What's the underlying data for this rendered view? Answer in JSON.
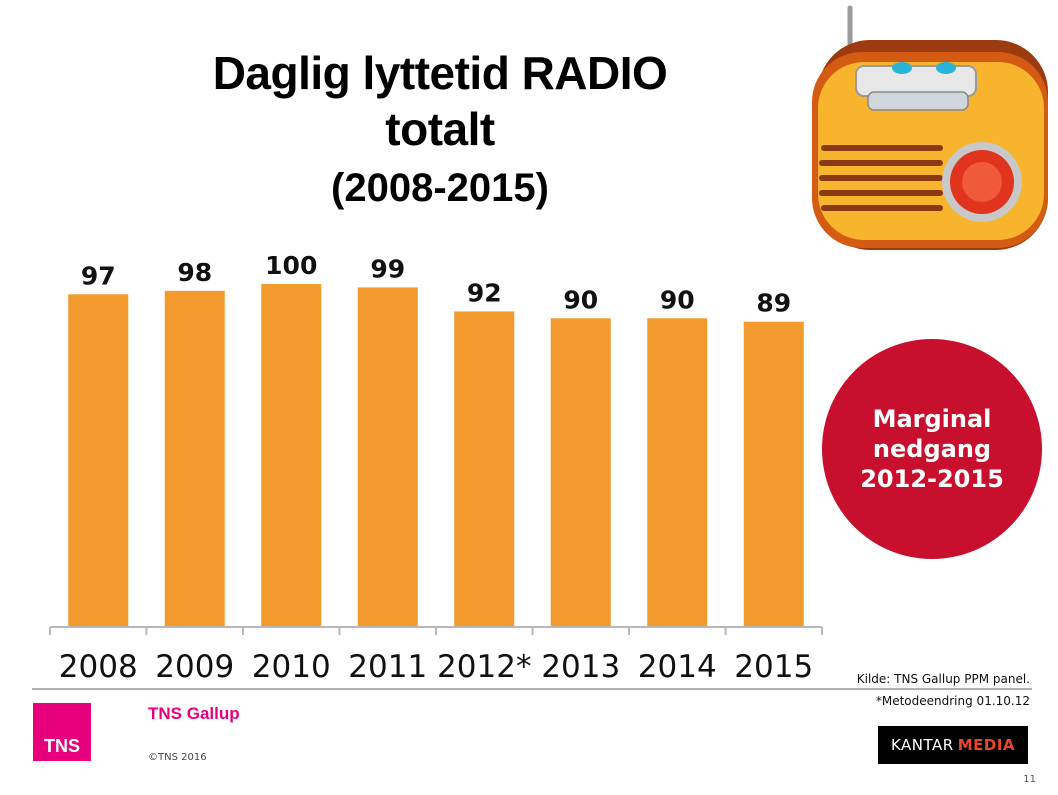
{
  "title": {
    "line1": "Daglig lyttetid RADIO",
    "line2": "totalt",
    "subtitle": "(2008-2015)"
  },
  "chart_data": {
    "type": "bar",
    "categories": [
      "2008",
      "2009",
      "2010",
      "2011",
      "2012*",
      "2013",
      "2014",
      "2015"
    ],
    "values": [
      97,
      98,
      100,
      99,
      92,
      90,
      90,
      89
    ],
    "title": "Daglig lyttetid RADIO totalt (2008-2015)",
    "xlabel": "",
    "ylabel": "",
    "ylim": [
      0,
      100
    ],
    "grid": false,
    "data_labels": true,
    "bar_color": "#F29A2E"
  },
  "callout": {
    "text": "Marginal nedgang 2012-2015",
    "color": "#C8102E"
  },
  "source": {
    "line1": "Kilde: TNS Gallup PPM panel.",
    "line2": "*Metodeendring 01.10.12"
  },
  "footer": {
    "tns_logo_text": "TNS",
    "tns_gallup": "TNS Gallup",
    "copyright": "©TNS 2016",
    "kantar": "KANTAR",
    "media": "MEDIA",
    "page_number": "11",
    "brand_color": "#E6007E"
  },
  "icons": {
    "radio": "radio-icon"
  }
}
